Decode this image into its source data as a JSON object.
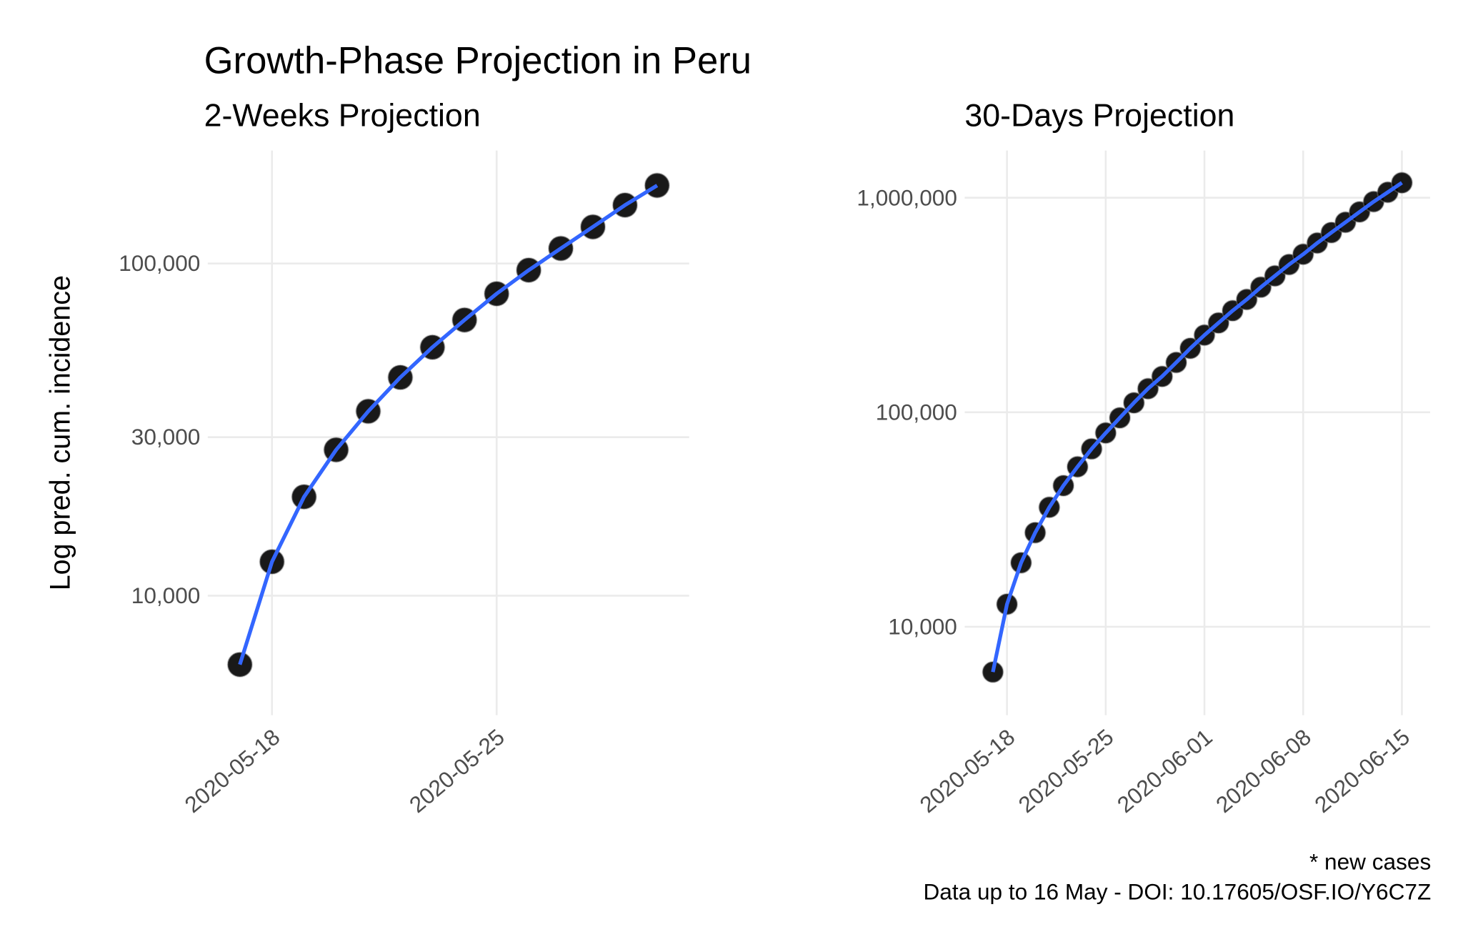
{
  "title": "Growth-Phase Projection in Peru",
  "caption": [
    "* new cases",
    "Data up to 16 May - DOI: 10.17605/OSF.IO/Y6C7Z"
  ],
  "chart_data": [
    {
      "type": "line",
      "subtitle": "2-Weeks Projection",
      "ylabel": "Log pred. cum. incidence",
      "log_y": true,
      "grid": true,
      "point_color": "#000000",
      "line_color": "#3366ff",
      "x": [
        "2020-05-17",
        "2020-05-18",
        "2020-05-19",
        "2020-05-20",
        "2020-05-21",
        "2020-05-22",
        "2020-05-23",
        "2020-05-24",
        "2020-05-25",
        "2020-05-26",
        "2020-05-27",
        "2020-05-28",
        "2020-05-29",
        "2020-05-30"
      ],
      "values": [
        6200,
        12650,
        19840,
        27480,
        35900,
        45400,
        55950,
        67600,
        81100,
        95500,
        111000,
        128900,
        149900,
        171800
      ],
      "xlim": [
        "2020-05-16",
        "2020-05-31"
      ],
      "xticks": [
        "2020-05-18",
        "2020-05-25"
      ],
      "ylim": [
        4365,
        218800
      ],
      "yticks": [
        {
          "value": 10000,
          "label": "10,000"
        },
        {
          "value": 30000,
          "label": "30,000"
        },
        {
          "value": 100000,
          "label": "100,000"
        }
      ]
    },
    {
      "type": "line",
      "subtitle": "30-Days Projection",
      "log_y": true,
      "grid": true,
      "point_color": "#000000",
      "line_color": "#3366ff",
      "x": [
        "2020-05-17",
        "2020-05-18",
        "2020-05-19",
        "2020-05-20",
        "2020-05-21",
        "2020-05-22",
        "2020-05-23",
        "2020-05-24",
        "2020-05-25",
        "2020-05-26",
        "2020-05-27",
        "2020-05-28",
        "2020-05-29",
        "2020-05-30",
        "2020-05-31",
        "2020-06-01",
        "2020-06-02",
        "2020-06-03",
        "2020-06-04",
        "2020-06-05",
        "2020-06-06",
        "2020-06-07",
        "2020-06-08",
        "2020-06-09",
        "2020-06-10",
        "2020-06-11",
        "2020-06-12",
        "2020-06-13",
        "2020-06-14",
        "2020-06-15"
      ],
      "values": [
        6150,
        12740,
        19880,
        27460,
        36060,
        45500,
        55700,
        67500,
        80100,
        94200,
        110700,
        128800,
        146900,
        170700,
        198700,
        229000,
        261000,
        297600,
        335800,
        383000,
        432500,
        488400,
        545500,
        615500,
        688300,
        769000,
        859500,
        959600,
        1061000,
        1175000
      ],
      "xlim": [
        "2020-05-15",
        "2020-06-17"
      ],
      "xticks": [
        "2020-05-18",
        "2020-05-25",
        "2020-06-01",
        "2020-06-08",
        "2020-06-15"
      ],
      "ylim": [
        3870,
        1660000
      ],
      "yticks": [
        {
          "value": 10000,
          "label": "10,000"
        },
        {
          "value": 100000,
          "label": "100,000"
        },
        {
          "value": 1000000,
          "label": "1,000,000"
        }
      ]
    }
  ]
}
